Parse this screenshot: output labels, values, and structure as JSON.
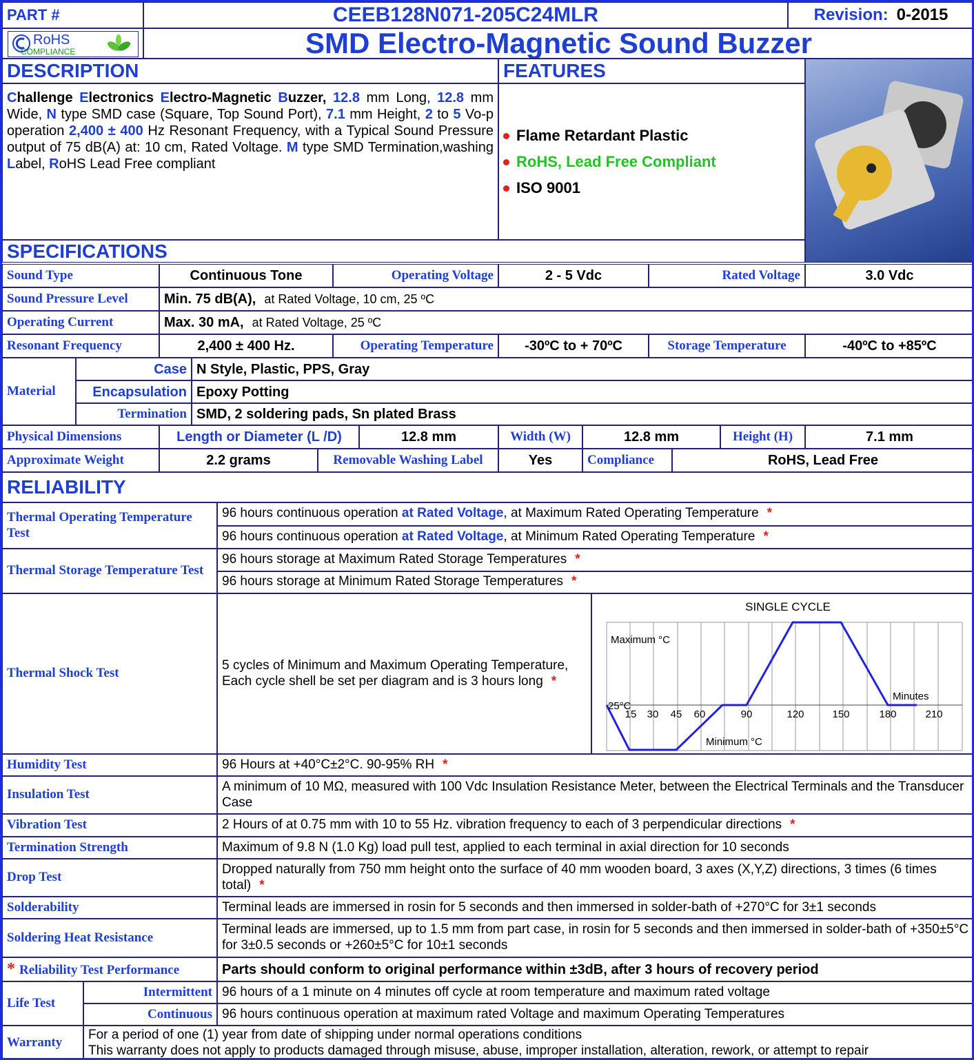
{
  "header": {
    "part_label": "PART #",
    "part_number": "CEEB128N071-205C24MLR",
    "revision_label": "Revision:",
    "revision": "0-2015",
    "rohs_logo": "RoHS",
    "rohs_sub": "COMPLIANCE",
    "title": "SMD Electro-Magnetic Sound Buzzer"
  },
  "description": {
    "heading": "DESCRIPTION",
    "text": [
      "C",
      "hallenge ",
      "E",
      "lectronics ",
      "E",
      "lectro-Magnetic ",
      "B",
      "uzzer, ",
      "12.8",
      " mm Long, ",
      "12.8",
      " mm Wide, ",
      "N",
      " type SMD case (Square, Top Sound Port), ",
      "7.1",
      " mm Height, ",
      "2",
      " to ",
      "5",
      " Vo-p operation ",
      "2,400 ± 400",
      " Hz Resonant Frequency, with a Typical Sound Pressure output of 75 dB(A) at: 10 cm, Rated Voltage. ",
      "M",
      " type SMD Termination,washing ",
      "L",
      "abel, ",
      "R",
      "oHS Lead Free compliant"
    ]
  },
  "features": {
    "heading": "FEATURES",
    "items": [
      "Flame Retardant Plastic",
      "RoHS, Lead Free Compliant",
      "ISO 9001"
    ]
  },
  "specifications": {
    "heading": "SPECIFICATIONS",
    "rows": [
      [
        "Sound Type",
        "Continuous Tone",
        "Operating Voltage",
        "2 - 5 Vdc",
        "Rated Voltage",
        "3.0 Vdc"
      ],
      [
        "Sound Pressure Level",
        "Min. 75 dB(A),",
        "at Rated Voltage, 10 cm, 25 ºC"
      ],
      [
        "Operating Current",
        "Max. 30 mA,",
        "at Rated Voltage, 25 ºC"
      ],
      [
        "Resonant Frequency",
        "2,400 ± 400 Hz.",
        "Operating Temperature",
        "-30ºC to + 70ºC",
        "Storage Temperature",
        "-40ºC to +85ºC"
      ],
      [
        "Physical Dimensions",
        "Length or Diameter (L /D)",
        "12.8 mm",
        "Width (W)",
        "12.8 mm",
        "Height (H)",
        "7.1 mm"
      ],
      [
        "Approximate Weight",
        "2.2 grams",
        "Removable Washing Label",
        "Yes",
        "Compliance",
        "RoHS, Lead Free"
      ]
    ],
    "material": {
      "label": "Material",
      "rows": [
        [
          "Case",
          "N Style, Plastic, PPS, Gray"
        ],
        [
          "Encapsulation",
          "Epoxy Potting"
        ],
        [
          "Termination",
          "SMD, 2 soldering pads, Sn plated Brass"
        ]
      ]
    }
  },
  "reliability": {
    "heading": "RELIABILITY",
    "tests": [
      {
        "name": "Thermal Operating Temperature Test",
        "lines": [
          [
            "96 hours continuous operation ",
            "at Rated Voltage",
            ", at  Maximum Rated Operating Temperature",
            "*"
          ],
          [
            "96 hours continuous operation ",
            "at Rated Voltage",
            ", at  Minimum Rated Operating Temperature",
            "*"
          ]
        ]
      },
      {
        "name": "Thermal Storage Temperature Test",
        "lines": [
          [
            "96 hours  storage at  Maximum Rated Storage Temperatures",
            "*"
          ],
          [
            "96 hours storage at  Minimum Rated Storage Temperatures",
            "*"
          ]
        ]
      },
      {
        "name": "Thermal Shock Test",
        "lines": [
          [
            "5 cycles of Minimum and Maximum Operating Temperature, Each cycle shell be set per diagram and is 3 hours long",
            "*"
          ]
        ]
      },
      {
        "name": "Humidity Test",
        "lines": [
          [
            "96 Hours at +40°C±2°C. 90-95% RH",
            "*"
          ]
        ]
      },
      {
        "name": "Insulation Test",
        "lines": [
          [
            "A minimum of 10 MΩ, measured with 100 Vdc Insulation Resistance Meter, between the Electrical Terminals and the Transducer Case"
          ]
        ]
      },
      {
        "name": "Vibration Test",
        "lines": [
          [
            "2 Hours of at 0.75 mm with 10 to 55 Hz. vibration frequency to each of 3 perpendicular directions",
            "*"
          ]
        ]
      },
      {
        "name": "Termination Strength",
        "lines": [
          [
            "Maximum of  9.8 N (1.0 Kg) load pull test, applied to each terminal in axial direction for 10 seconds"
          ]
        ]
      },
      {
        "name": "Drop Test",
        "lines": [
          [
            "Dropped naturally from 750 mm height onto the surface of 40 mm wooden board, 3 axes (X,Y,Z) directions, 3 times (6 times total)",
            "*"
          ]
        ]
      },
      {
        "name": "Solderability",
        "lines": [
          [
            "Terminal leads are immersed in rosin for 5 seconds and then immersed in solder-bath of +270°C for 3±1 seconds"
          ]
        ]
      },
      {
        "name": "Soldering Heat Resistance",
        "lines": [
          [
            "Terminal leads are immersed, up to 1.5 mm from part case, in rosin for 5 seconds and then immersed in solder-bath of +350±5°C for 3±0.5 seconds or +260±5°C for 10±1 seconds"
          ]
        ]
      }
    ],
    "diagram": {
      "title": "SINGLE CYCLE",
      "max_label": "Maximum °C",
      "min_label": "Minimum °C",
      "start_label": "25°C",
      "unit_label": "Minutes",
      "ticks": [
        15,
        30,
        45,
        60,
        90,
        120,
        150,
        180,
        210
      ]
    },
    "performance": {
      "marker": "*",
      "label": "Reliability Test Performance",
      "text": "Parts should conform to original performance within ±3dB, after 3 hours of recovery period"
    },
    "life_test": {
      "label": "Life Test",
      "rows": [
        [
          "Intermittent",
          "96 hours of a 1 minute on 4 minutes off cycle at room temperature and maximum rated voltage"
        ],
        [
          "Continuous",
          "96 hours continuous operation at maximum rated Voltage and maximum Operating Temperatures"
        ]
      ]
    },
    "warranty": {
      "label": "Warranty",
      "lines": [
        "For a period of one (1) year from date of shipping under normal operations conditions",
        "This warranty does not apply to products damaged through misuse, abuse, improper installation, alteration, rework, or attempt to repair"
      ]
    }
  }
}
